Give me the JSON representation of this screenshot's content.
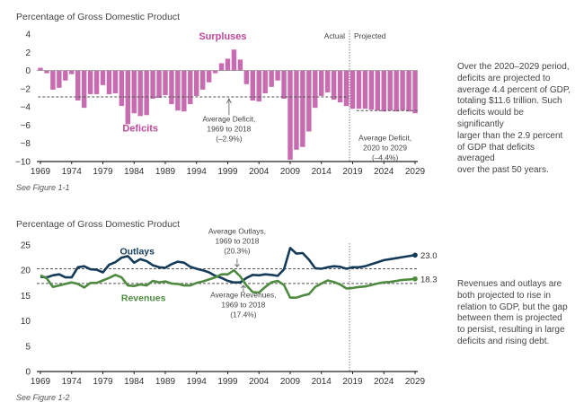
{
  "chart_data": [
    {
      "type": "bar",
      "ylabel": "Percentage of Gross Domestic Product",
      "see_figure": "See Figure 1-1",
      "x": [
        1969,
        1970,
        1971,
        1972,
        1973,
        1974,
        1975,
        1976,
        1977,
        1978,
        1979,
        1980,
        1981,
        1982,
        1983,
        1984,
        1985,
        1986,
        1987,
        1988,
        1989,
        1990,
        1991,
        1992,
        1993,
        1994,
        1995,
        1996,
        1997,
        1998,
        1999,
        2000,
        2001,
        2002,
        2003,
        2004,
        2005,
        2006,
        2007,
        2008,
        2009,
        2010,
        2011,
        2012,
        2013,
        2014,
        2015,
        2016,
        2017,
        2018,
        2019,
        2020,
        2021,
        2022,
        2023,
        2024,
        2025,
        2026,
        2027,
        2028,
        2029
      ],
      "values": [
        0.3,
        -0.3,
        -2.1,
        -1.9,
        -1.1,
        -0.4,
        -3.3,
        -4.1,
        -2.6,
        -2.6,
        -1.6,
        -2.6,
        -2.5,
        -3.9,
        -5.9,
        -4.7,
        -5.0,
        -4.9,
        -3.1,
        -3.0,
        -2.7,
        -3.7,
        -4.4,
        -4.5,
        -3.7,
        -2.8,
        -2.1,
        -1.3,
        -0.3,
        0.8,
        1.3,
        2.3,
        1.2,
        -1.5,
        -3.3,
        -3.4,
        -2.5,
        -1.8,
        -1.1,
        -3.1,
        -9.8,
        -8.7,
        -8.4,
        -6.7,
        -4.1,
        -2.8,
        -2.4,
        -3.2,
        -3.5,
        -3.9,
        -4.2,
        -4.2,
        -4.2,
        -4.3,
        -4.4,
        -4.5,
        -4.4,
        -4.5,
        -4.4,
        -4.5,
        -4.7
      ],
      "ylim": [
        -10,
        4
      ],
      "yticks": [
        4,
        2,
        0,
        -2,
        -4,
        -6,
        -8,
        -10
      ],
      "xticks": [
        1969,
        1974,
        1979,
        1984,
        1989,
        1994,
        1999,
        2004,
        2009,
        2014,
        2019,
        2024,
        2029
      ],
      "reference_lines": [
        {
          "from": 1969,
          "to": 2018,
          "value": -2.9
        },
        {
          "from": 2020,
          "to": 2029,
          "value": -4.4
        }
      ],
      "actual_label": "Actual",
      "projected_label": "Projected",
      "annotations": {
        "surpluses": "Surpluses",
        "deficits": "Deficits",
        "avg_deficit_hist": [
          "Average Deficit,",
          "1969 to 2018",
          "(–2.9%)"
        ],
        "avg_deficit_proj": [
          "Average Deficit,",
          "2020 to 2029",
          "(–4.4%)"
        ]
      },
      "colors": {
        "bars": "#c86bb0",
        "labels": "#c0489d",
        "reference": "#555555"
      }
    },
    {
      "type": "line",
      "ylabel": "Percentage of Gross Domestic Product",
      "see_figure": "See Figure 1-2",
      "x": [
        1969,
        1970,
        1971,
        1972,
        1973,
        1974,
        1975,
        1976,
        1977,
        1978,
        1979,
        1980,
        1981,
        1982,
        1983,
        1984,
        1985,
        1986,
        1987,
        1988,
        1989,
        1990,
        1991,
        1992,
        1993,
        1994,
        1995,
        1996,
        1997,
        1998,
        1999,
        2000,
        2001,
        2002,
        2003,
        2004,
        2005,
        2006,
        2007,
        2008,
        2009,
        2010,
        2011,
        2012,
        2013,
        2014,
        2015,
        2016,
        2017,
        2018,
        2019,
        2020,
        2021,
        2022,
        2023,
        2024,
        2025,
        2026,
        2027,
        2028,
        2029
      ],
      "series": [
        {
          "name": "Outlays",
          "color": "#143c5a",
          "values": [
            18.7,
            18.6,
            19.0,
            19.2,
            18.6,
            18.6,
            20.6,
            20.8,
            20.2,
            20.1,
            19.6,
            21.1,
            21.6,
            22.5,
            22.8,
            21.5,
            22.2,
            21.8,
            21.0,
            20.6,
            20.5,
            21.2,
            21.7,
            21.5,
            20.7,
            20.3,
            20.0,
            19.6,
            18.9,
            18.5,
            17.9,
            17.6,
            17.6,
            18.5,
            19.1,
            19.0,
            19.2,
            19.1,
            18.9,
            20.2,
            24.4,
            23.3,
            23.4,
            22.1,
            20.4,
            20.3,
            20.6,
            20.8,
            20.7,
            20.3,
            20.6,
            20.6,
            20.8,
            21.2,
            21.6,
            22.0,
            22.2,
            22.4,
            22.6,
            22.8,
            23.0
          ],
          "end_label": "23.0"
        },
        {
          "name": "Revenues",
          "color": "#4e8b40",
          "values": [
            19.0,
            18.4,
            16.7,
            17.0,
            17.3,
            17.6,
            17.3,
            16.6,
            17.5,
            17.5,
            18.0,
            18.5,
            19.1,
            18.6,
            17.0,
            16.9,
            17.2,
            17.0,
            17.9,
            17.6,
            17.8,
            17.4,
            17.3,
            17.0,
            17.0,
            17.5,
            17.8,
            18.2,
            18.6,
            19.2,
            19.2,
            20.0,
            18.8,
            17.0,
            15.7,
            15.6,
            16.7,
            17.6,
            17.9,
            17.1,
            14.6,
            14.6,
            15.0,
            15.3,
            16.7,
            17.4,
            18.0,
            17.7,
            17.2,
            16.4,
            16.5,
            16.7,
            16.8,
            17.1,
            17.4,
            17.6,
            17.7,
            17.9,
            18.1,
            18.2,
            18.3
          ],
          "end_label": "18.3"
        }
      ],
      "ylim": [
        0,
        25
      ],
      "yticks": [
        25,
        20,
        15,
        10,
        5,
        0
      ],
      "xticks": [
        1969,
        1974,
        1979,
        1984,
        1989,
        1994,
        1999,
        2004,
        2009,
        2014,
        2019,
        2024,
        2029
      ],
      "reference_lines": [
        {
          "value": 20.3,
          "color": "#555555"
        },
        {
          "value": 17.4,
          "color": "#555555"
        }
      ],
      "annotations": {
        "avg_outlays": [
          "Average Outlays,",
          "1969 to 2018",
          "(20.3%)"
        ],
        "avg_revenues": [
          "Average Revenues,",
          "1969 to 2018",
          "(17.4%)"
        ]
      }
    }
  ],
  "notes": {
    "top": [
      "Over the 2020–2029 period,",
      "deficits are projected to",
      "average 4.4 percent of GDP,",
      "totaling $11.6 trillion. Such",
      "deficits would be significantly",
      "larger than the 2.9 percent",
      "of GDP that deficits averaged",
      "over the past 50 years."
    ],
    "bottom": [
      "Revenues and outlays are",
      "both projected to rise in",
      "relation to GDP, but the gap",
      "between them is projected",
      "to persist, resulting in large",
      "deficits and rising debt."
    ]
  }
}
